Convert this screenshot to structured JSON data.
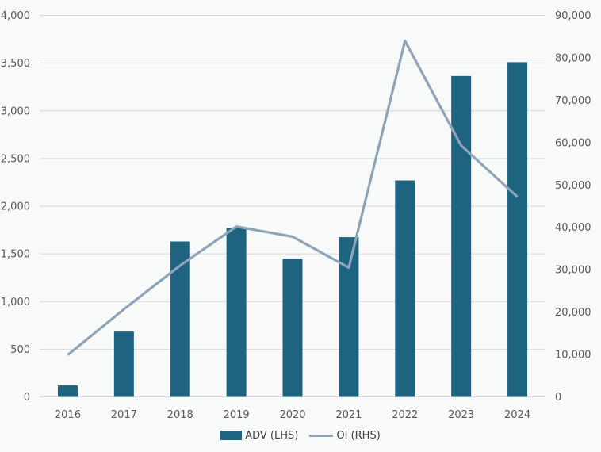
{
  "chart_data": {
    "type": "bar",
    "subtype": "combo-bar-line-dual-axis",
    "title": "",
    "categories": [
      "2016",
      "2017",
      "2018",
      "2019",
      "2020",
      "2021",
      "2022",
      "2023",
      "2024"
    ],
    "series": [
      {
        "name": "ADV (LHS)",
        "type": "bar",
        "axis": "left",
        "color": "#1e6480",
        "values": [
          120,
          685,
          1630,
          1770,
          1450,
          1675,
          2270,
          3365,
          3510
        ]
      },
      {
        "name": "OI (RHS)",
        "type": "line",
        "axis": "right",
        "color": "#8ea4b8",
        "values": [
          9900,
          20700,
          31000,
          40200,
          37800,
          30500,
          84000,
          59300,
          47200
        ]
      }
    ],
    "left_axis": {
      "min": 0,
      "max": 4000,
      "step": 500,
      "tick_labels": [
        "0",
        "500",
        "1,000",
        "1,500",
        "2,000",
        "2,500",
        "3,000",
        "3,500",
        "4,000"
      ]
    },
    "right_axis": {
      "min": 0,
      "max": 90000,
      "step": 10000,
      "tick_labels": [
        "0",
        "10,000",
        "20,000",
        "30,000",
        "40,000",
        "50,000",
        "60,000",
        "70,000",
        "80,000",
        "90,000"
      ]
    },
    "grid": true,
    "gridline_color": "#d9d9d9",
    "background_color": "#f8f9f9",
    "tick_text_color": "#595959",
    "legend_text_color": "#404040",
    "legend_position": "bottom"
  }
}
